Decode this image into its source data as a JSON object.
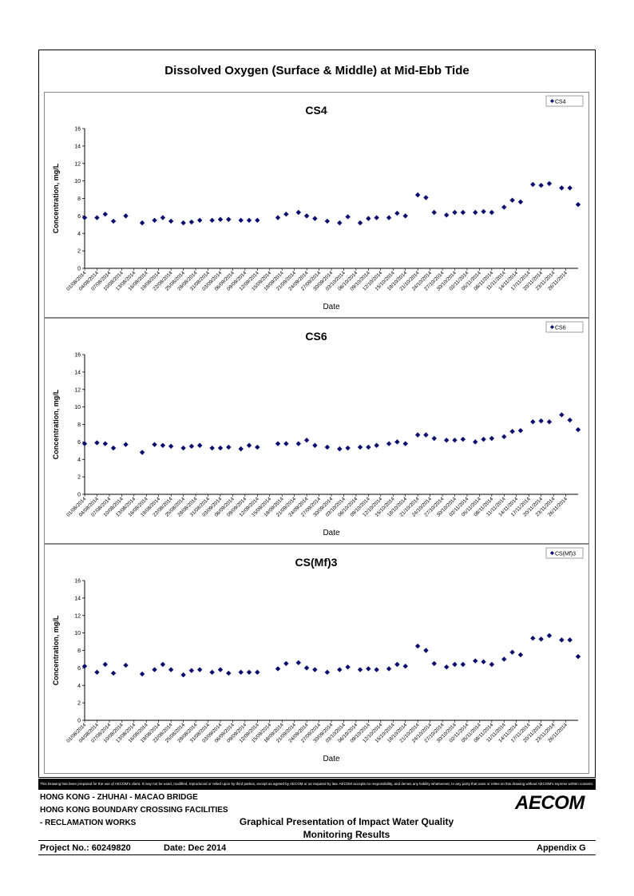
{
  "page": {
    "title": "Dissolved Oxygen (Surface & Middle) at Mid-Ebb Tide",
    "disclaimer": "This Drawing has been prepared for the use of AECOM's client. It may not be used, modified, reproduced or relied upon by third parties, except as agreed by AECOM or as required by law. AECOM accepts no responsibility, and denies any liability whatsoever, to any party that uses or relies on this drawing without AECOM's express written consent.",
    "footer": {
      "line1": "HONG KONG - ZHUHAI - MACAO BRIDGE",
      "line2": "HONG KONG BOUNDARY CROSSING FACILITIES",
      "line3": "- RECLAMATION WORKS",
      "center1": "Graphical Presentation of Impact Water Quality",
      "center2": "Monitoring Results",
      "project": "Project No.: 60249820",
      "date": "Date: Dec 2014",
      "appendix": "Appendix G",
      "logo": "AECOM"
    }
  },
  "chart_data": [
    {
      "type": "scatter",
      "title": "CS4",
      "xlabel": "Date",
      "ylabel": "Concentration, mg/L",
      "ylim": [
        0,
        16
      ],
      "yticks": [
        0,
        2,
        4,
        6,
        8,
        10,
        12,
        14,
        16
      ],
      "legend": "top-right",
      "series": [
        {
          "name": "CS4",
          "color": "#0a0a6e",
          "x": [
            "01/08/2014",
            "04/08/2014",
            "06/08/2014",
            "08/08/2014",
            "11/08/2014",
            "15/08/2014",
            "18/08/2014",
            "20/08/2014",
            "22/08/2014",
            "25/08/2014",
            "27/08/2014",
            "29/08/2014",
            "01/09/2014",
            "03/09/2014",
            "05/09/2014",
            "08/09/2014",
            "10/09/2014",
            "12/09/2014",
            "17/09/2014",
            "19/09/2014",
            "22/09/2014",
            "24/09/2014",
            "26/09/2014",
            "29/09/2014",
            "02/10/2014",
            "04/10/2014",
            "07/10/2014",
            "09/10/2014",
            "11/10/2014",
            "14/10/2014",
            "16/10/2014",
            "18/10/2014",
            "21/10/2014",
            "23/10/2014",
            "25/10/2014",
            "28/10/2014",
            "30/10/2014",
            "01/11/2014",
            "04/11/2014",
            "06/11/2014",
            "08/11/2014",
            "11/11/2014",
            "13/11/2014",
            "15/11/2014",
            "18/11/2014",
            "20/11/2014",
            "22/11/2014",
            "25/11/2014",
            "27/11/2014",
            "29/11/2014"
          ],
          "y": [
            5.8,
            5.8,
            6.2,
            5.4,
            6.0,
            5.2,
            5.5,
            5.8,
            5.4,
            5.2,
            5.3,
            5.5,
            5.5,
            5.6,
            5.6,
            5.5,
            5.5,
            5.5,
            5.8,
            6.2,
            6.4,
            6.0,
            5.7,
            5.4,
            5.2,
            5.9,
            5.2,
            5.7,
            5.8,
            5.8,
            6.3,
            6.0,
            8.4,
            8.1,
            6.4,
            6.1,
            6.4,
            6.4,
            6.4,
            6.5,
            6.4,
            7.0,
            7.8,
            7.6,
            9.6,
            9.5,
            9.7,
            9.2,
            9.2,
            7.3
          ]
        }
      ]
    },
    {
      "type": "scatter",
      "title": "CS6",
      "xlabel": "Date",
      "ylabel": "Concentration, mg/L",
      "ylim": [
        0,
        16
      ],
      "yticks": [
        0,
        2,
        4,
        6,
        8,
        10,
        12,
        14,
        16
      ],
      "legend": "top-right",
      "series": [
        {
          "name": "CS6",
          "color": "#0a0a6e",
          "x": [
            "01/08/2014",
            "04/08/2014",
            "06/08/2014",
            "08/08/2014",
            "11/08/2014",
            "15/08/2014",
            "18/08/2014",
            "20/08/2014",
            "22/08/2014",
            "25/08/2014",
            "27/08/2014",
            "29/08/2014",
            "01/09/2014",
            "03/09/2014",
            "05/09/2014",
            "08/09/2014",
            "10/09/2014",
            "12/09/2014",
            "17/09/2014",
            "19/09/2014",
            "22/09/2014",
            "24/09/2014",
            "26/09/2014",
            "29/09/2014",
            "02/10/2014",
            "04/10/2014",
            "07/10/2014",
            "09/10/2014",
            "11/10/2014",
            "14/10/2014",
            "16/10/2014",
            "18/10/2014",
            "21/10/2014",
            "23/10/2014",
            "25/10/2014",
            "28/10/2014",
            "30/10/2014",
            "01/11/2014",
            "04/11/2014",
            "06/11/2014",
            "08/11/2014",
            "11/11/2014",
            "13/11/2014",
            "15/11/2014",
            "18/11/2014",
            "20/11/2014",
            "22/11/2014",
            "25/11/2014",
            "27/11/2014",
            "29/11/2014"
          ],
          "y": [
            5.8,
            5.9,
            5.8,
            5.3,
            5.7,
            4.8,
            5.7,
            5.6,
            5.5,
            5.3,
            5.5,
            5.6,
            5.3,
            5.3,
            5.4,
            5.2,
            5.6,
            5.4,
            5.8,
            5.8,
            5.8,
            6.2,
            5.6,
            5.4,
            5.2,
            5.3,
            5.4,
            5.4,
            5.6,
            5.8,
            6.0,
            5.8,
            6.8,
            6.8,
            6.4,
            6.2,
            6.2,
            6.3,
            6.0,
            6.3,
            6.4,
            6.6,
            7.2,
            7.3,
            8.3,
            8.4,
            8.3,
            9.1,
            8.5,
            7.4
          ]
        }
      ]
    },
    {
      "type": "scatter",
      "title": "CS(Mf)3",
      "xlabel": "Date",
      "ylabel": "Concentration, mg/L",
      "ylim": [
        0,
        16
      ],
      "yticks": [
        0,
        2,
        4,
        6,
        8,
        10,
        12,
        14,
        16
      ],
      "legend": "top-right",
      "series": [
        {
          "name": "CS(Mf)3",
          "color": "#0a0a6e",
          "x": [
            "01/08/2014",
            "04/08/2014",
            "06/08/2014",
            "08/08/2014",
            "11/08/2014",
            "15/08/2014",
            "18/08/2014",
            "20/08/2014",
            "22/08/2014",
            "25/08/2014",
            "27/08/2014",
            "29/08/2014",
            "01/09/2014",
            "03/09/2014",
            "05/09/2014",
            "08/09/2014",
            "10/09/2014",
            "12/09/2014",
            "17/09/2014",
            "19/09/2014",
            "22/09/2014",
            "24/09/2014",
            "26/09/2014",
            "29/09/2014",
            "02/10/2014",
            "04/10/2014",
            "07/10/2014",
            "09/10/2014",
            "11/10/2014",
            "14/10/2014",
            "16/10/2014",
            "18/10/2014",
            "21/10/2014",
            "23/10/2014",
            "25/10/2014",
            "28/10/2014",
            "30/10/2014",
            "01/11/2014",
            "04/11/2014",
            "06/11/2014",
            "08/11/2014",
            "11/11/2014",
            "13/11/2014",
            "15/11/2014",
            "18/11/2014",
            "20/11/2014",
            "22/11/2014",
            "25/11/2014",
            "27/11/2014",
            "29/11/2014"
          ],
          "y": [
            6.2,
            5.5,
            6.4,
            5.4,
            6.3,
            5.3,
            5.8,
            6.4,
            5.8,
            5.2,
            5.7,
            5.8,
            5.5,
            5.8,
            5.4,
            5.5,
            5.5,
            5.5,
            5.9,
            6.5,
            6.6,
            6.0,
            5.8,
            5.5,
            5.8,
            6.1,
            5.8,
            5.9,
            5.8,
            5.9,
            6.4,
            6.2,
            8.5,
            8.0,
            6.5,
            6.1,
            6.4,
            6.4,
            6.8,
            6.7,
            6.4,
            7.0,
            7.8,
            7.5,
            9.4,
            9.3,
            9.7,
            9.2,
            9.2,
            7.3
          ]
        }
      ]
    }
  ],
  "x_ticks": [
    "01/08/2014",
    "04/08/2014",
    "07/08/2014",
    "10/08/2014",
    "13/08/2014",
    "16/08/2014",
    "19/08/2014",
    "22/08/2014",
    "25/08/2014",
    "28/08/2014",
    "31/08/2014",
    "03/09/2014",
    "06/09/2014",
    "09/09/2014",
    "12/09/2014",
    "15/09/2014",
    "18/09/2014",
    "21/09/2014",
    "24/09/2014",
    "27/09/2014",
    "30/09/2014",
    "03/10/2014",
    "06/10/2014",
    "09/10/2014",
    "12/10/2014",
    "15/10/2014",
    "18/10/2014",
    "21/10/2014",
    "24/10/2014",
    "27/10/2014",
    "30/10/2014",
    "02/11/2014",
    "05/11/2014",
    "08/11/2014",
    "11/11/2014",
    "14/11/2014",
    "17/11/2014",
    "20/11/2014",
    "23/11/2014",
    "26/11/2014"
  ]
}
